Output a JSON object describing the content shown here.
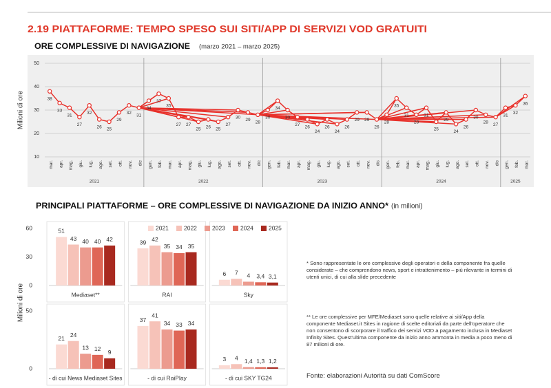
{
  "title": "2.19 PIATTAFORME: TEMPO SPESO SUI SITI/APP DI SERVIZI VOD GRATUITI",
  "chart_data": [
    {
      "type": "line",
      "title": "ORE COMPLESSIVE DI NAVIGAZIONE",
      "subtitle": "(marzo 2021 – marzo 2025)",
      "y_label": "Milioni di ore",
      "color": "#e8302a",
      "ylim": [
        10,
        50
      ],
      "yticks": [
        10,
        20,
        30,
        40,
        50
      ],
      "grid": true,
      "groups": [
        {
          "label": "2021",
          "categories": [
            "mar.",
            "apr.",
            "mag.",
            "giu.",
            "lug.",
            "ago.",
            "set.",
            "ott.",
            "nov.",
            "dic"
          ],
          "values": [
            38,
            33,
            31,
            27,
            32,
            26,
            25,
            29,
            32,
            31
          ]
        },
        {
          "label": "2022",
          "categories": [
            "gen.",
            "feb.",
            "mar.",
            "apr.",
            "mag.",
            "giu.",
            "lug.",
            "ago.",
            "set.",
            "ott.",
            "nov.",
            "dic"
          ],
          "values": [
            34,
            37,
            35,
            27,
            27,
            25,
            26,
            25,
            27,
            30,
            29,
            28
          ]
        },
        {
          "label": "2023",
          "categories": [
            "gen.",
            "feb.",
            "mar.",
            "apr.",
            "mag.",
            "giu.",
            "lug.",
            "ago.",
            "set.",
            "ott.",
            "nov.",
            "dic"
          ],
          "values": [
            30,
            34,
            30,
            27,
            26,
            24,
            26,
            24,
            26,
            29,
            29,
            26
          ]
        },
        {
          "label": "2024",
          "categories": [
            "gen.",
            "feb.",
            "mar.",
            "apr.",
            "mag.",
            "giu.",
            "lug.",
            "ago.",
            "set.",
            "ott.",
            "nov.",
            "dic"
          ],
          "values": [
            28,
            35,
            31,
            28,
            31,
            25,
            29,
            24,
            26,
            30,
            28,
            27
          ]
        },
        {
          "label": "2025",
          "categories": [
            "gen.",
            "feb.",
            "mar."
          ],
          "values": [
            31,
            32,
            36
          ]
        }
      ]
    },
    {
      "type": "bar",
      "title": "PRINCIPALI PIATTAFORME – ORE COMPLESSIVE DI NAVIGAZIONE DA INIZIO ANNO*",
      "subtitle": "(in milioni)",
      "y_label": "Milioni di ore",
      "legend": "top",
      "ylim": [
        0,
        60
      ],
      "yticks": [
        0,
        30,
        60
      ],
      "categories": [
        "Mediaset**",
        "RAI",
        "Sky"
      ],
      "series": [
        {
          "name": "2021",
          "color": "#fbdad3",
          "values": [
            51,
            39,
            6
          ],
          "value_labels": [
            "51",
            "39",
            "6"
          ]
        },
        {
          "name": "2022",
          "color": "#f6c2b8",
          "values": [
            43,
            42,
            7
          ],
          "value_labels": [
            "43",
            "42",
            "7"
          ]
        },
        {
          "name": "2023",
          "color": "#ec9b8f",
          "values": [
            40,
            35,
            4
          ],
          "value_labels": [
            "40",
            "35",
            "4"
          ]
        },
        {
          "name": "2024",
          "color": "#df6656",
          "values": [
            40,
            34,
            3.4
          ],
          "value_labels": [
            "40",
            "34",
            "3,4"
          ]
        },
        {
          "name": "2025",
          "color": "#a8291f",
          "values": [
            42,
            35,
            3.1
          ],
          "value_labels": [
            "42",
            "35",
            "3,1"
          ]
        }
      ]
    },
    {
      "type": "bar",
      "ylim": [
        0,
        50
      ],
      "yticks": [
        0,
        50
      ],
      "categories": [
        "- di cui News Mediaset Sites",
        "- di cui RaiPlay",
        "- di cui SKY TG24"
      ],
      "series": [
        {
          "color": "#fbdad3",
          "values": [
            21,
            37,
            3
          ],
          "value_labels": [
            "21",
            "37",
            "3"
          ]
        },
        {
          "color": "#f6c2b8",
          "values": [
            24,
            41,
            4
          ],
          "value_labels": [
            "24",
            "41",
            "4"
          ]
        },
        {
          "color": "#ec9b8f",
          "values": [
            13,
            34,
            1.4
          ],
          "value_labels": [
            "13",
            "34",
            "1,4"
          ]
        },
        {
          "color": "#df6656",
          "values": [
            12,
            33,
            1.3
          ],
          "value_labels": [
            "12",
            "33",
            "1,3"
          ]
        },
        {
          "color": "#a8291f",
          "values": [
            9,
            34,
            1.2
          ],
          "value_labels": [
            "9",
            "34",
            "1,2"
          ]
        }
      ]
    }
  ],
  "notes": [
    "* Sono rappresentate le ore complessive degli operatori e della componente fra quelle considerate – che comprendono news, sport e intrattenimento – più rilevante in termini di utenti unici, di cui alla slide precedente",
    "** Le ore complessive per MFE/Mediaset sono quelle relative ai siti/App della componente Mediaset.it Sites in ragione di scelte editoriali da parte dell'operatore che non consentono di scorporare il traffico dei servizi VOD a pagamento inclusa in Mediaset Infinity Sites. Quest'ultima componente da inizio anno ammonta in media a poco meno di 87 milioni di ore."
  ],
  "source": "Fonte: elaborazioni Autorità su dati ComScore"
}
